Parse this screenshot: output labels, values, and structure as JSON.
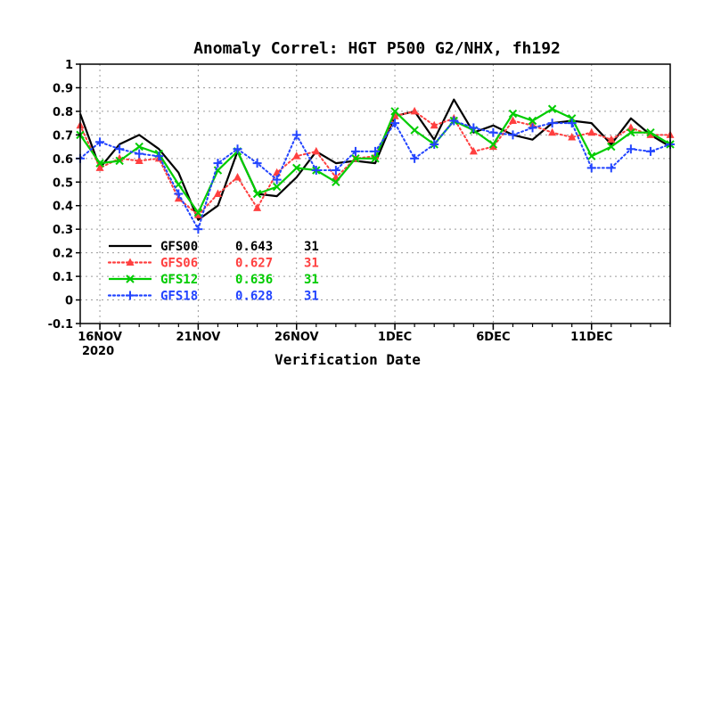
{
  "chart_data": {
    "type": "line",
    "title": "Anomaly Correl: HGT P500 G2/NHX, fh192",
    "xlabel": "Verification Date",
    "ylabel": "",
    "ylim": [
      -0.1,
      1.0
    ],
    "yticks": [
      -0.1,
      0,
      0.1,
      0.2,
      0.3,
      0.4,
      0.5,
      0.6,
      0.7,
      0.8,
      0.9,
      1
    ],
    "ytick_labels": [
      "-0.1",
      "0",
      "0.1",
      "0.2",
      "0.3",
      "0.4",
      "0.5",
      "0.6",
      "0.7",
      "0.8",
      "0.9",
      "1"
    ],
    "x": [
      "2020-11-15",
      "2020-11-16",
      "2020-11-17",
      "2020-11-18",
      "2020-11-19",
      "2020-11-20",
      "2020-11-21",
      "2020-11-22",
      "2020-11-23",
      "2020-11-24",
      "2020-11-25",
      "2020-11-26",
      "2020-11-27",
      "2020-11-28",
      "2020-11-29",
      "2020-11-30",
      "2020-12-01",
      "2020-12-02",
      "2020-12-03",
      "2020-12-04",
      "2020-12-05",
      "2020-12-06",
      "2020-12-07",
      "2020-12-08",
      "2020-12-09",
      "2020-12-10",
      "2020-12-11",
      "2020-12-12",
      "2020-12-13",
      "2020-12-14",
      "2020-12-15"
    ],
    "xtick_labels": [
      {
        "x": "2020-11-16",
        "label": "16NOV",
        "sublabel": "2020"
      },
      {
        "x": "2020-11-21",
        "label": "21NOV",
        "sublabel": ""
      },
      {
        "x": "2020-11-26",
        "label": "26NOV",
        "sublabel": ""
      },
      {
        "x": "2020-12-01",
        "label": "1DEC",
        "sublabel": ""
      },
      {
        "x": "2020-12-06",
        "label": "6DEC",
        "sublabel": ""
      },
      {
        "x": "2020-12-11",
        "label": "11DEC",
        "sublabel": ""
      }
    ],
    "grid": true,
    "legend_position": "lower-left",
    "series": [
      {
        "name": "GFS00",
        "mean": "0.643",
        "count": "31",
        "color": "#000000",
        "dash": "solid",
        "marker": "none",
        "values": [
          0.79,
          0.56,
          0.66,
          0.7,
          0.64,
          0.54,
          0.34,
          0.4,
          0.63,
          0.45,
          0.44,
          0.52,
          0.63,
          0.58,
          0.59,
          0.58,
          0.78,
          0.8,
          0.68,
          0.85,
          0.71,
          0.74,
          0.7,
          0.68,
          0.75,
          0.76,
          0.75,
          0.66,
          0.77,
          0.7,
          0.65
        ]
      },
      {
        "name": "GFS06",
        "mean": "0.627",
        "count": "31",
        "color": "#ff3f3f",
        "dash": "dotted",
        "marker": "triangle",
        "values": [
          0.74,
          0.56,
          0.6,
          0.59,
          0.6,
          0.43,
          0.36,
          0.45,
          0.52,
          0.39,
          0.54,
          0.61,
          0.63,
          0.52,
          0.6,
          0.61,
          0.78,
          0.8,
          0.74,
          0.77,
          0.63,
          0.65,
          0.76,
          0.74,
          0.71,
          0.69,
          0.71,
          0.68,
          0.73,
          0.7,
          0.7
        ]
      },
      {
        "name": "GFS12",
        "mean": "0.636",
        "count": "31",
        "color": "#00cc00",
        "dash": "solid",
        "marker": "x",
        "values": [
          0.7,
          0.58,
          0.59,
          0.65,
          0.62,
          0.49,
          0.37,
          0.55,
          0.63,
          0.45,
          0.48,
          0.56,
          0.55,
          0.5,
          0.6,
          0.6,
          0.8,
          0.72,
          0.66,
          0.76,
          0.72,
          0.66,
          0.79,
          0.76,
          0.81,
          0.77,
          0.61,
          0.65,
          0.71,
          0.71,
          0.66
        ]
      },
      {
        "name": "GFS18",
        "mean": "0.628",
        "count": "31",
        "color": "#2244ff",
        "dash": "dotted",
        "marker": "plus",
        "values": [
          0.6,
          0.67,
          0.64,
          0.62,
          0.61,
          0.45,
          0.3,
          0.58,
          0.64,
          0.58,
          0.51,
          0.7,
          0.55,
          0.55,
          0.63,
          0.63,
          0.75,
          0.6,
          0.66,
          0.76,
          0.73,
          0.71,
          0.7,
          0.73,
          0.75,
          0.75,
          0.56,
          0.56,
          0.64,
          0.63,
          0.66
        ]
      }
    ]
  }
}
